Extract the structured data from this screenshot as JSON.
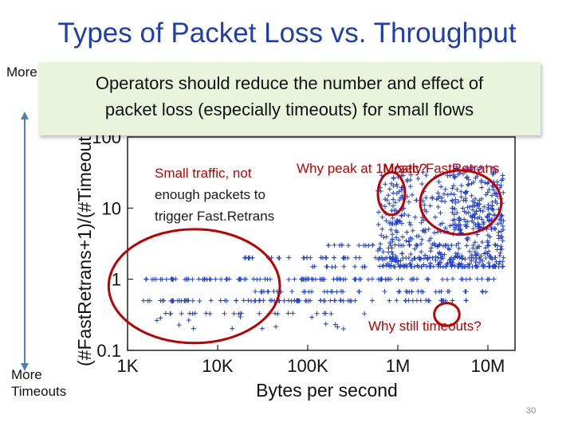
{
  "slide": {
    "title": "Types of Packet Loss vs. Throughput",
    "label_top": "More Fast",
    "label_bottom_1": "More",
    "label_bottom_2": "Timeouts",
    "callout_line1": "Operators should reduce the number and effect of",
    "callout_line2": "packet loss (especially timeouts) for small flows",
    "annotation_small_1": "Small traffic, not",
    "annotation_small_2": "enough packets to",
    "annotation_small_3": "trigger Fast.Retrans",
    "annotation_peak": "Why peak at 1M/sec?",
    "annotation_mostly": "Mostly FastRetrans",
    "annotation_timeouts": "Why still timeouts?",
    "page_number": "30",
    "colors": {
      "title": "#1f3fae",
      "points": "#1f3fd6",
      "annotation": "#c00000",
      "callout_bg": "#e8f5dc",
      "arrow": "#4f7fb8"
    }
  },
  "chart_data": {
    "type": "scatter",
    "xlabel": "Bytes per second",
    "ylabel": "(#FastRetrans+1)/(#Timeout",
    "x_scale": "log",
    "y_scale": "log",
    "xlim": [
      1000,
      20000000
    ],
    "ylim": [
      0.1,
      100
    ],
    "x_ticks": [
      {
        "value": 1000,
        "label": "1K"
      },
      {
        "value": 10000,
        "label": "10K"
      },
      {
        "value": 100000,
        "label": "100K"
      },
      {
        "value": 1000000,
        "label": "1M"
      },
      {
        "value": 10000000,
        "label": "10M"
      }
    ],
    "y_ticks": [
      {
        "value": 0.1,
        "label": "0.1"
      },
      {
        "value": 1,
        "label": "1"
      },
      {
        "value": 10,
        "label": "10"
      },
      {
        "value": 100,
        "label": "100"
      }
    ],
    "marker": "plus",
    "point_bands": [
      {
        "y": 1,
        "x_range": [
          1500,
          15000000
        ],
        "count": 110
      },
      {
        "y": 0.5,
        "x_range": [
          1500,
          8000000
        ],
        "count": 90
      },
      {
        "y": 2,
        "x_range": [
          20000,
          15000000
        ],
        "count": 60
      },
      {
        "y": 0.67,
        "x_range": [
          20000,
          10000000
        ],
        "count": 45
      },
      {
        "y": 0.33,
        "x_range": [
          1500,
          500000
        ],
        "count": 25
      },
      {
        "y": 1.5,
        "x_range": [
          100000,
          15000000
        ],
        "count": 35
      },
      {
        "y": 3,
        "x_range": [
          150000,
          15000000
        ],
        "count": 35
      }
    ],
    "point_clusters": [
      {
        "x_range": [
          600000,
          15000000
        ],
        "y_range": [
          1.5,
          40
        ],
        "count": 420
      },
      {
        "x_range": [
          4000000,
          15000000
        ],
        "y_range": [
          5,
          40
        ],
        "count": 120
      },
      {
        "x_range": [
          800000,
          1200000
        ],
        "y_range": [
          6,
          20
        ],
        "count": 20
      },
      {
        "x_range": [
          2000,
          300000
        ],
        "y_range": [
          0.2,
          0.3
        ],
        "count": 14
      }
    ],
    "highlight_circles": [
      {
        "x": 5500,
        "y": 0.8,
        "rx_decades": 0.95,
        "ry_decades": 0.8
      },
      {
        "x": 850000,
        "y": 16,
        "rx_decades": 0.15,
        "ry_decades": 0.3
      },
      {
        "x": 5000000,
        "y": 12,
        "rx_decades": 0.45,
        "ry_decades": 0.45
      },
      {
        "x": 3500000,
        "y": 0.32,
        "rx_decades": 0.14,
        "ry_decades": 0.16
      }
    ]
  }
}
